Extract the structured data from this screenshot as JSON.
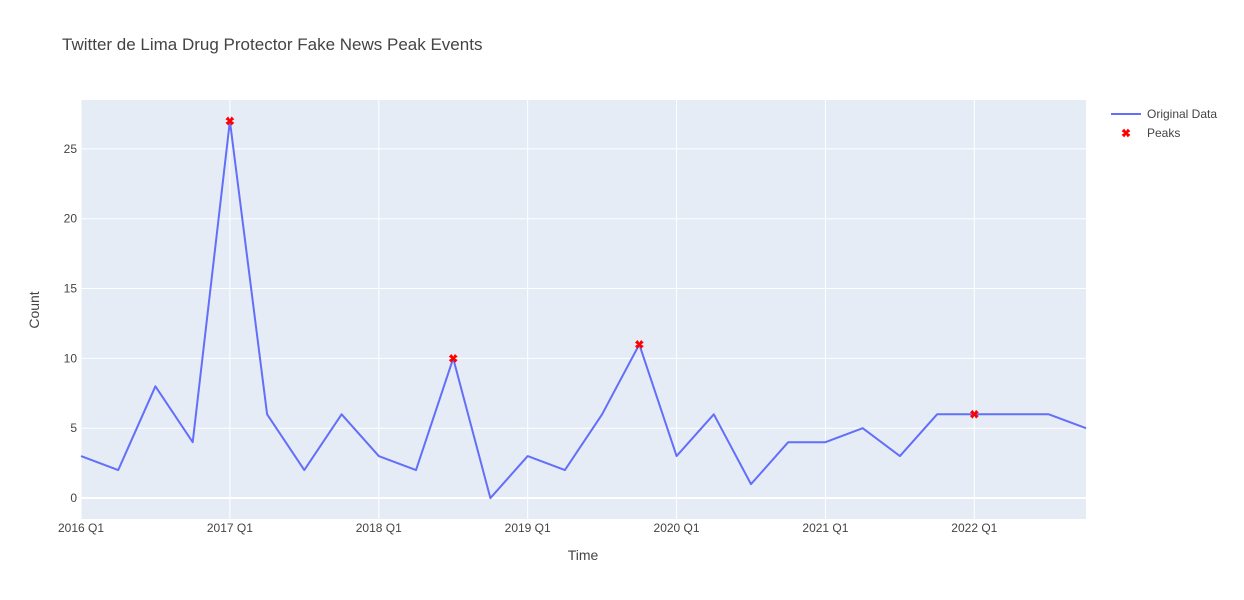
{
  "chart_data": {
    "type": "line",
    "title": "Twitter de Lima Drug Protector Fake News Peak Events",
    "xlabel": "Time",
    "ylabel": "Count",
    "x": [
      "2016 Q1",
      "2016 Q2",
      "2016 Q3",
      "2016 Q4",
      "2017 Q1",
      "2017 Q2",
      "2017 Q3",
      "2017 Q4",
      "2018 Q1",
      "2018 Q2",
      "2018 Q3",
      "2018 Q4",
      "2019 Q1",
      "2019 Q2",
      "2019 Q3",
      "2019 Q4",
      "2020 Q1",
      "2020 Q2",
      "2020 Q3",
      "2020 Q4",
      "2021 Q1",
      "2021 Q2",
      "2021 Q3",
      "2021 Q4",
      "2022 Q1",
      "2022 Q2",
      "2022 Q3",
      "2022 Q4"
    ],
    "series": [
      {
        "name": "Original Data",
        "values": [
          3,
          2,
          8,
          4,
          27,
          6,
          2,
          6,
          3,
          2,
          10,
          0,
          3,
          2,
          6,
          11,
          3,
          6,
          1,
          4,
          4,
          5,
          3,
          6,
          6,
          6,
          6,
          5
        ],
        "color": "#636efa"
      },
      {
        "name": "Peaks",
        "x": [
          "2017 Q1",
          "2018 Q3",
          "2019 Q4",
          "2022 Q1"
        ],
        "values": [
          27,
          10,
          11,
          6
        ],
        "color": "#ff0000",
        "marker": "x"
      }
    ],
    "x_ticks": [
      "2016 Q1",
      "2017 Q1",
      "2018 Q1",
      "2019 Q1",
      "2020 Q1",
      "2021 Q1",
      "2022 Q1"
    ],
    "y_ticks": [
      0,
      5,
      10,
      15,
      20,
      25
    ],
    "ylim": [
      -1.5,
      28.5
    ],
    "xlim": [
      "2016 Q1",
      "2022 Q4"
    ],
    "grid": true,
    "legend_position": "top-right",
    "plot_background": "#e5ecf6"
  }
}
